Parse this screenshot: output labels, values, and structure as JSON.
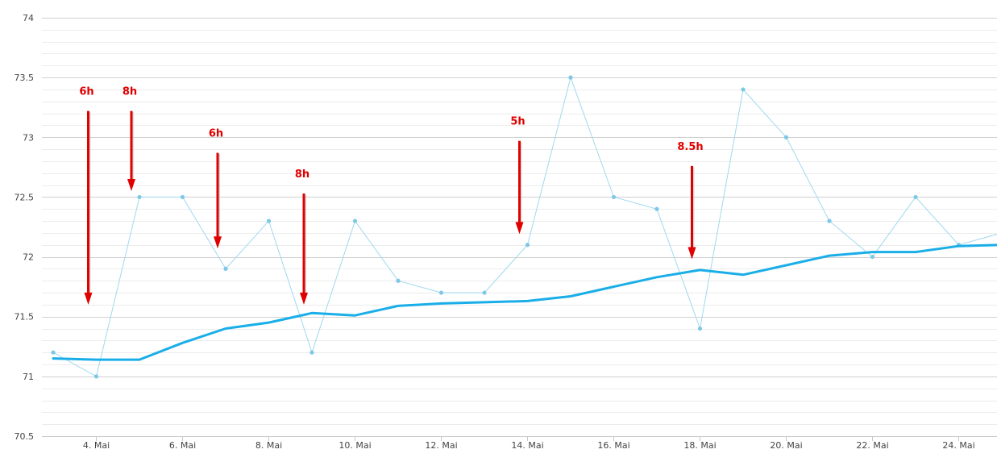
{
  "chart_data": {
    "type": "line",
    "x_start": "2024-05-03",
    "x_end": "2024-05-25",
    "x_tick_labels": [
      "4. Mai",
      "6. Mai",
      "8. Mai",
      "10. Mai",
      "12. Mai",
      "14. Mai",
      "16. Mai",
      "18. Mai",
      "20. Mai",
      "22. Mai",
      "24. Mai"
    ],
    "y_tick_labels": [
      "74",
      "73.5",
      "73",
      "72.5",
      "72",
      "71.5",
      "71",
      "70.5"
    ],
    "ylim": [
      70.5,
      74
    ],
    "grid": true,
    "series": [
      {
        "kind": "measurements",
        "color": "#9fd9ee",
        "points": [
          [
            "2024-05-03",
            71.2
          ],
          [
            "2024-05-04",
            71.0
          ],
          [
            "2024-05-05",
            72.5
          ],
          [
            "2024-05-06",
            72.5
          ],
          [
            "2024-05-07",
            71.9
          ],
          [
            "2024-05-08",
            72.3
          ],
          [
            "2024-05-09",
            71.2
          ],
          [
            "2024-05-10",
            72.3
          ],
          [
            "2024-05-11",
            71.8
          ],
          [
            "2024-05-12",
            71.7
          ],
          [
            "2024-05-13",
            71.7
          ],
          [
            "2024-05-14",
            72.1
          ],
          [
            "2024-05-15",
            73.5
          ],
          [
            "2024-05-16",
            72.5
          ],
          [
            "2024-05-17",
            72.4
          ],
          [
            "2024-05-18",
            71.4
          ],
          [
            "2024-05-19",
            73.4
          ],
          [
            "2024-05-20",
            73.0
          ],
          [
            "2024-05-21",
            72.3
          ],
          [
            "2024-05-22",
            72.0
          ],
          [
            "2024-05-23",
            72.5
          ],
          [
            "2024-05-24",
            72.1
          ],
          [
            "2024-05-25",
            72.2
          ]
        ]
      },
      {
        "kind": "trend",
        "color": "#1aaee8",
        "points": [
          [
            "2024-05-03",
            71.15
          ],
          [
            "2024-05-04",
            71.14
          ],
          [
            "2024-05-05",
            71.14
          ],
          [
            "2024-05-06",
            71.28
          ],
          [
            "2024-05-07",
            71.4
          ],
          [
            "2024-05-08",
            71.45
          ],
          [
            "2024-05-09",
            71.53
          ],
          [
            "2024-05-10",
            71.51
          ],
          [
            "2024-05-11",
            71.59
          ],
          [
            "2024-05-12",
            71.61
          ],
          [
            "2024-05-13",
            71.62
          ],
          [
            "2024-05-14",
            71.63
          ],
          [
            "2024-05-15",
            71.67
          ],
          [
            "2024-05-16",
            71.75
          ],
          [
            "2024-05-17",
            71.83
          ],
          [
            "2024-05-18",
            71.89
          ],
          [
            "2024-05-19",
            71.85
          ],
          [
            "2024-05-20",
            71.93
          ],
          [
            "2024-05-21",
            72.01
          ],
          [
            "2024-05-22",
            72.04
          ],
          [
            "2024-05-23",
            72.04
          ],
          [
            "2024-05-24",
            72.09
          ],
          [
            "2024-05-25",
            72.1
          ]
        ]
      }
    ],
    "annotations": [
      {
        "label": "6h",
        "date": "2024-05-04",
        "arrow_from": 73.22,
        "arrow_to": 71.6
      },
      {
        "label": "8h",
        "date": "2024-05-05",
        "arrow_from": 73.22,
        "arrow_to": 72.55
      },
      {
        "label": "6h",
        "date": "2024-05-07",
        "arrow_from": 72.87,
        "arrow_to": 72.07
      },
      {
        "label": "8h",
        "date": "2024-05-09",
        "arrow_from": 72.53,
        "arrow_to": 71.6
      },
      {
        "label": "5h",
        "date": "2024-05-14",
        "arrow_from": 72.97,
        "arrow_to": 72.19
      },
      {
        "label": "8.5h",
        "date": "2024-05-18",
        "arrow_from": 72.76,
        "arrow_to": 71.98
      }
    ]
  }
}
